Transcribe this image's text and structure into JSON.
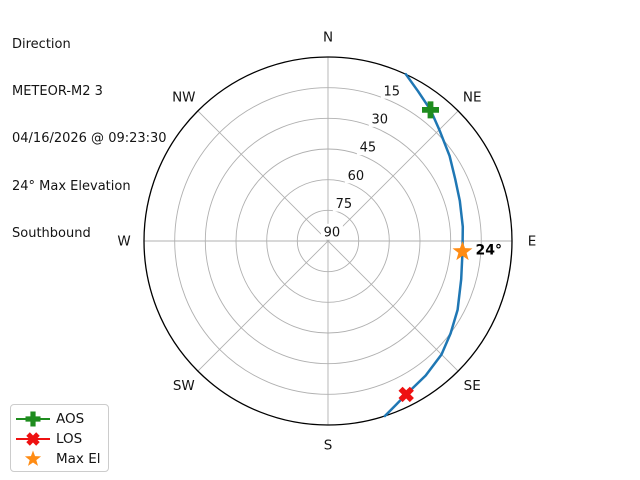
{
  "header": {
    "lines": [
      "Direction",
      "METEOR-M2 3",
      "04/16/2026 @ 09:23:30",
      "24° Max Elevation",
      "Southbound"
    ]
  },
  "chart_data": {
    "type": "line",
    "projection": "polar-sky-plot",
    "description": "Satellite pass: azimuth is compass angle, elevation 0° at outer circle to 90° at center",
    "compass_labels": [
      "N",
      "NE",
      "E",
      "SE",
      "S",
      "SW",
      "W",
      "NW"
    ],
    "elevation_ring_labels": [
      15,
      30,
      45,
      60,
      75,
      90
    ],
    "grid_color": "#b0b0b0",
    "outline_color": "#000000",
    "track": {
      "name": "pass-track",
      "color": "#1f77b4",
      "points_az_el": [
        [
          25,
          0
        ],
        [
          31,
          4.5
        ],
        [
          38,
          8.6
        ],
        [
          45,
          13
        ],
        [
          55,
          17.4
        ],
        [
          64,
          20.8
        ],
        [
          73,
          22.6
        ],
        [
          84,
          23.7
        ],
        [
          94.5,
          24
        ],
        [
          106,
          22.2
        ],
        [
          118,
          18.2
        ],
        [
          127,
          14.9
        ],
        [
          135,
          11.5
        ],
        [
          144,
          8.7
        ],
        [
          153,
          5.8
        ],
        [
          158,
          2.9
        ],
        [
          162,
          0
        ]
      ]
    },
    "markers": [
      {
        "label": "AOS",
        "shape": "plus",
        "color": "#1e8c1e",
        "az": 38,
        "el": 8.6
      },
      {
        "label": "LOS",
        "shape": "x",
        "color": "#ee1111",
        "az": 153,
        "el": 5.8
      },
      {
        "label": "Max El",
        "shape": "star",
        "color": "#ff8c14",
        "az": 94.5,
        "el": 24
      }
    ],
    "max_el_annotation": "24°"
  },
  "legend": {
    "items": [
      {
        "label": "AOS",
        "shape": "plus",
        "color": "#1e8c1e",
        "line": true
      },
      {
        "label": "LOS",
        "shape": "x",
        "color": "#ee1111",
        "line": true
      },
      {
        "label": "Max El",
        "shape": "star",
        "color": "#ff8c14",
        "line": false
      }
    ]
  }
}
